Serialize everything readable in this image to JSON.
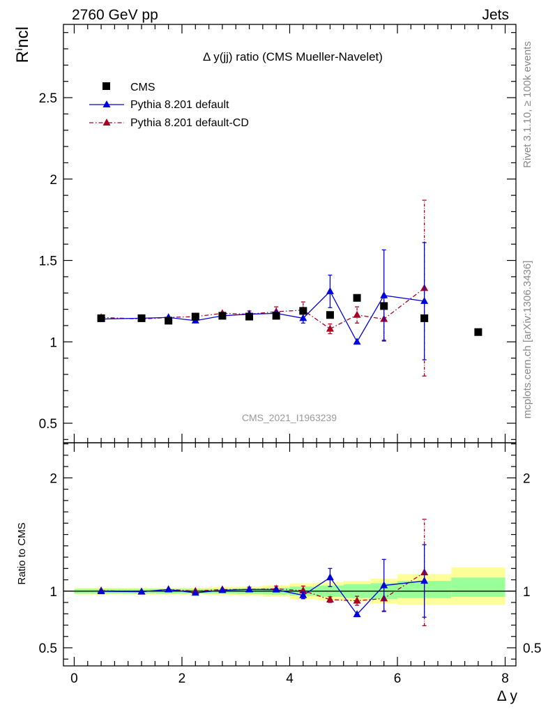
{
  "header": {
    "energy_label": "2760 GeV pp",
    "process_label": "Jets"
  },
  "side_labels": {
    "rivet": "Rivet 3.1.10, ≥ 100k events",
    "mcplots": "mcplots.cern.ch [arXiv:1306.3436]"
  },
  "plot_title": "Δ y(jj) ratio (CMS Mueller-Navelet)",
  "watermark": "CMS_2021_I1963239",
  "chart_data": [
    {
      "type": "scatter",
      "panel": "main",
      "ylabel": "Rⁱncl",
      "ylim": [
        0.38,
        2.95
      ],
      "yticks": [
        {
          "v": 0.5,
          "label": "0.5"
        },
        {
          "v": 1.0,
          "label": "1"
        },
        {
          "v": 1.5,
          "label": "1.5"
        },
        {
          "v": 2.0,
          "label": "2"
        },
        {
          "v": 2.5,
          "label": "2.5"
        }
      ],
      "legend_position": "top-left",
      "series": [
        {
          "name": "CMS",
          "marker": "square",
          "color": "#000000",
          "x": [
            0.5,
            1.25,
            1.75,
            2.25,
            2.75,
            3.25,
            3.75,
            4.25,
            4.75,
            5.25,
            5.75,
            6.5,
            7.5
          ],
          "y": [
            1.145,
            1.145,
            1.13,
            1.155,
            1.16,
            1.155,
            1.16,
            1.19,
            1.165,
            1.27,
            1.22,
            1.145,
            1.06
          ]
        },
        {
          "name": "Pythia 8.201 default",
          "marker": "triangle",
          "line": "solid",
          "color": "#0000dd",
          "x": [
            0.5,
            1.25,
            1.75,
            2.25,
            2.75,
            3.25,
            3.75,
            4.25,
            4.75,
            5.25,
            5.75,
            6.5
          ],
          "y": [
            1.14,
            1.145,
            1.15,
            1.13,
            1.16,
            1.17,
            1.175,
            1.145,
            1.31,
            1.0,
            1.285,
            1.25
          ],
          "err": [
            0.0,
            0.0,
            0.0,
            0.0,
            0.0,
            0.0,
            0.0,
            0.03,
            0.1,
            0.0,
            0.28,
            0.36
          ]
        },
        {
          "name": "Pythia 8.201 default-CD",
          "marker": "triangle",
          "line": "dashdot",
          "color": "#aa0022",
          "x": [
            0.5,
            1.25,
            1.75,
            2.25,
            2.75,
            3.25,
            3.75,
            4.25,
            4.75,
            5.25,
            5.75,
            6.5
          ],
          "y": [
            1.15,
            1.14,
            1.15,
            1.155,
            1.175,
            1.17,
            1.185,
            1.195,
            1.08,
            1.165,
            1.14,
            1.33
          ],
          "err": [
            0.0,
            0.0,
            0.0,
            0.0,
            0.0,
            0.02,
            0.03,
            0.05,
            0.03,
            0.05,
            0.13,
            0.54
          ]
        }
      ]
    },
    {
      "type": "line",
      "panel": "ratio",
      "ylabel": "Ratio to CMS",
      "xlabel": "Δ y",
      "xlim": [
        -0.2,
        8.2
      ],
      "xticks": [
        {
          "v": 0,
          "label": "0"
        },
        {
          "v": 2,
          "label": "2"
        },
        {
          "v": 4,
          "label": "4"
        },
        {
          "v": 6,
          "label": "6"
        },
        {
          "v": 8,
          "label": "8"
        }
      ],
      "ylim": [
        0.34,
        2.31
      ],
      "yticks": [
        {
          "v": 0.5,
          "label": "0.5"
        },
        {
          "v": 1.0,
          "label": "1"
        },
        {
          "v": 2.0,
          "label": "2"
        }
      ],
      "bands": {
        "bin_edges": [
          0.0,
          1.0,
          1.5,
          2.0,
          2.5,
          3.0,
          3.5,
          4.0,
          4.5,
          5.0,
          5.5,
          6.0,
          7.0,
          8.0
        ],
        "yellow": [
          [
            0.97,
            1.03
          ],
          [
            0.97,
            1.03
          ],
          [
            0.97,
            1.03
          ],
          [
            0.97,
            1.03
          ],
          [
            0.965,
            1.035
          ],
          [
            0.96,
            1.04
          ],
          [
            0.95,
            1.05
          ],
          [
            0.93,
            1.07
          ],
          [
            0.92,
            1.08
          ],
          [
            0.91,
            1.09
          ],
          [
            0.89,
            1.11
          ],
          [
            0.88,
            1.15
          ],
          [
            0.88,
            1.21
          ]
        ],
        "green": [
          [
            0.98,
            1.02
          ],
          [
            0.98,
            1.02
          ],
          [
            0.98,
            1.02
          ],
          [
            0.98,
            1.02
          ],
          [
            0.98,
            1.02
          ],
          [
            0.975,
            1.025
          ],
          [
            0.97,
            1.03
          ],
          [
            0.96,
            1.04
          ],
          [
            0.95,
            1.05
          ],
          [
            0.94,
            1.06
          ],
          [
            0.93,
            1.07
          ],
          [
            0.94,
            1.09
          ],
          [
            0.95,
            1.12
          ]
        ]
      },
      "series": [
        {
          "name": "Pythia 8.201 default",
          "color": "#0000dd",
          "x": [
            0.5,
            1.25,
            1.75,
            2.25,
            2.75,
            3.25,
            3.75,
            4.25,
            4.75,
            5.25,
            5.75,
            6.5
          ],
          "y": [
            0.998,
            0.995,
            1.015,
            0.985,
            1.008,
            1.015,
            1.013,
            0.963,
            1.12,
            0.795,
            1.05,
            1.09
          ],
          "err": [
            0.0,
            0.0,
            0.0,
            0.0,
            0.0,
            0.0,
            0.0,
            0.03,
            0.08,
            0.0,
            0.23,
            0.32
          ]
        },
        {
          "name": "Pythia 8.201 default-CD",
          "color": "#aa0022",
          "x": [
            0.5,
            1.25,
            1.75,
            2.25,
            2.75,
            3.25,
            3.75,
            4.25,
            4.75,
            5.25,
            5.75,
            6.5
          ],
          "y": [
            1.005,
            0.995,
            1.015,
            1.0,
            1.015,
            1.015,
            1.02,
            1.005,
            0.925,
            0.915,
            0.935,
            1.165
          ],
          "err": [
            0.0,
            0.0,
            0.0,
            0.0,
            0.0,
            0.02,
            0.025,
            0.04,
            0.025,
            0.04,
            0.11,
            0.47
          ]
        }
      ]
    }
  ]
}
